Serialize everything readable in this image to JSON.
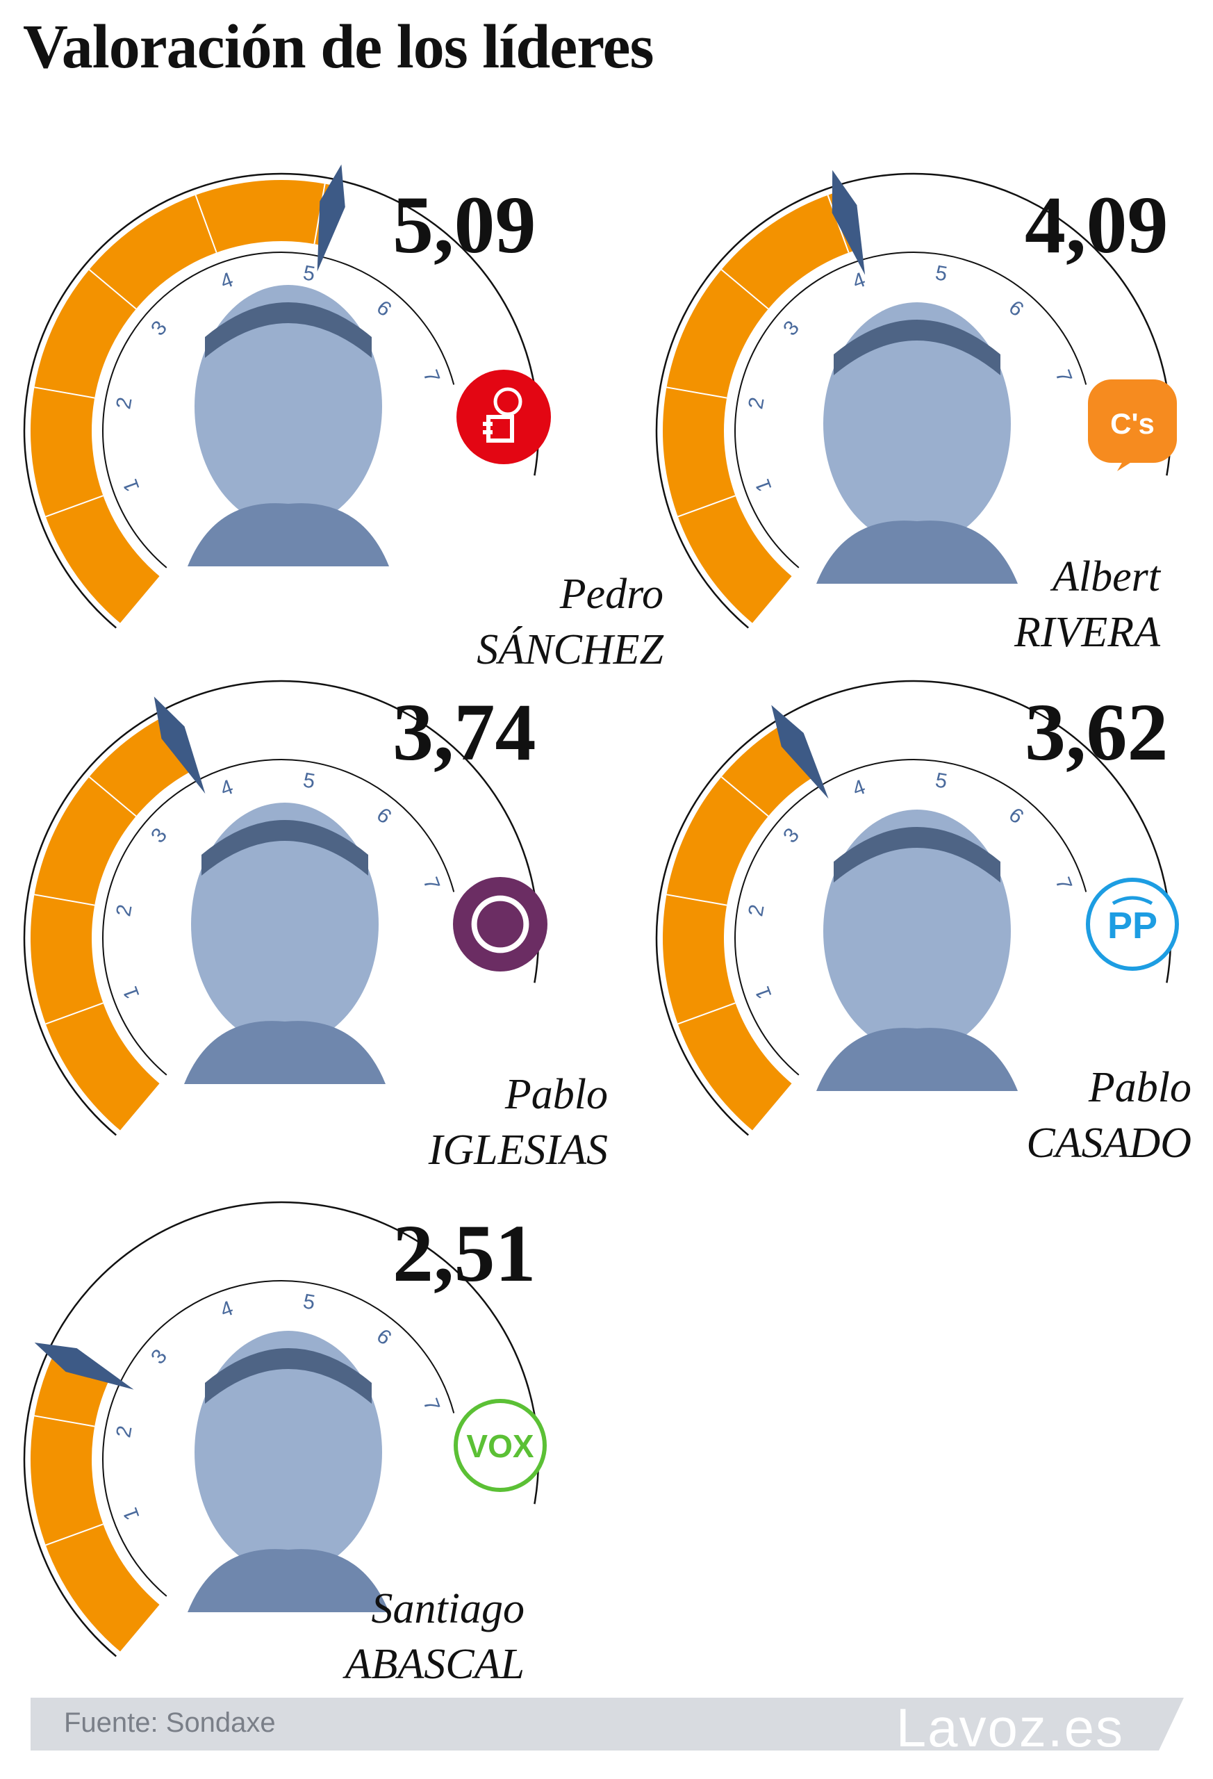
{
  "title": "Valoración de los líderes",
  "footer": {
    "source": "Fuente: Sondaxe",
    "brand": "Lavoz.es"
  },
  "colors": {
    "fill": "#f39200",
    "needle": "#3d5a86",
    "tick_number": "#4a6a9c",
    "arc": "#111111",
    "photo_tint": "#8fa6c9"
  },
  "chart_data": {
    "type": "gauge",
    "scale": {
      "min": 0,
      "max": 8,
      "tick_labels": [
        "1",
        "2",
        "3",
        "4",
        "5",
        "6",
        "7"
      ]
    },
    "series": [
      {
        "first_name": "Pedro",
        "last_name": "SÁNCHEZ",
        "value": 5.09,
        "label": "5,09",
        "party_logo": "psoe-rose-fist-icon",
        "logo_color": "#e30613"
      },
      {
        "first_name": "Albert",
        "last_name": "RIVERA",
        "value": 4.09,
        "label": "4,09",
        "party_logo": "ciudadanos-cs-icon",
        "logo_color": "#f68b1f",
        "logo_text": "C's"
      },
      {
        "first_name": "Pablo",
        "last_name": "IGLESIAS",
        "value": 3.74,
        "label": "3,74",
        "party_logo": "podemos-circle-icon",
        "logo_color": "#6b2d63"
      },
      {
        "first_name": "Pablo",
        "last_name": "CASADO",
        "value": 3.62,
        "label": "3,62",
        "party_logo": "pp-icon",
        "logo_color": "#1d9de2",
        "logo_text": "PP"
      },
      {
        "first_name": "Santiago",
        "last_name": "ABASCAL",
        "value": 2.51,
        "label": "2,51",
        "party_logo": "vox-icon",
        "logo_color": "#5bc035",
        "logo_text": "VOX"
      }
    ]
  }
}
